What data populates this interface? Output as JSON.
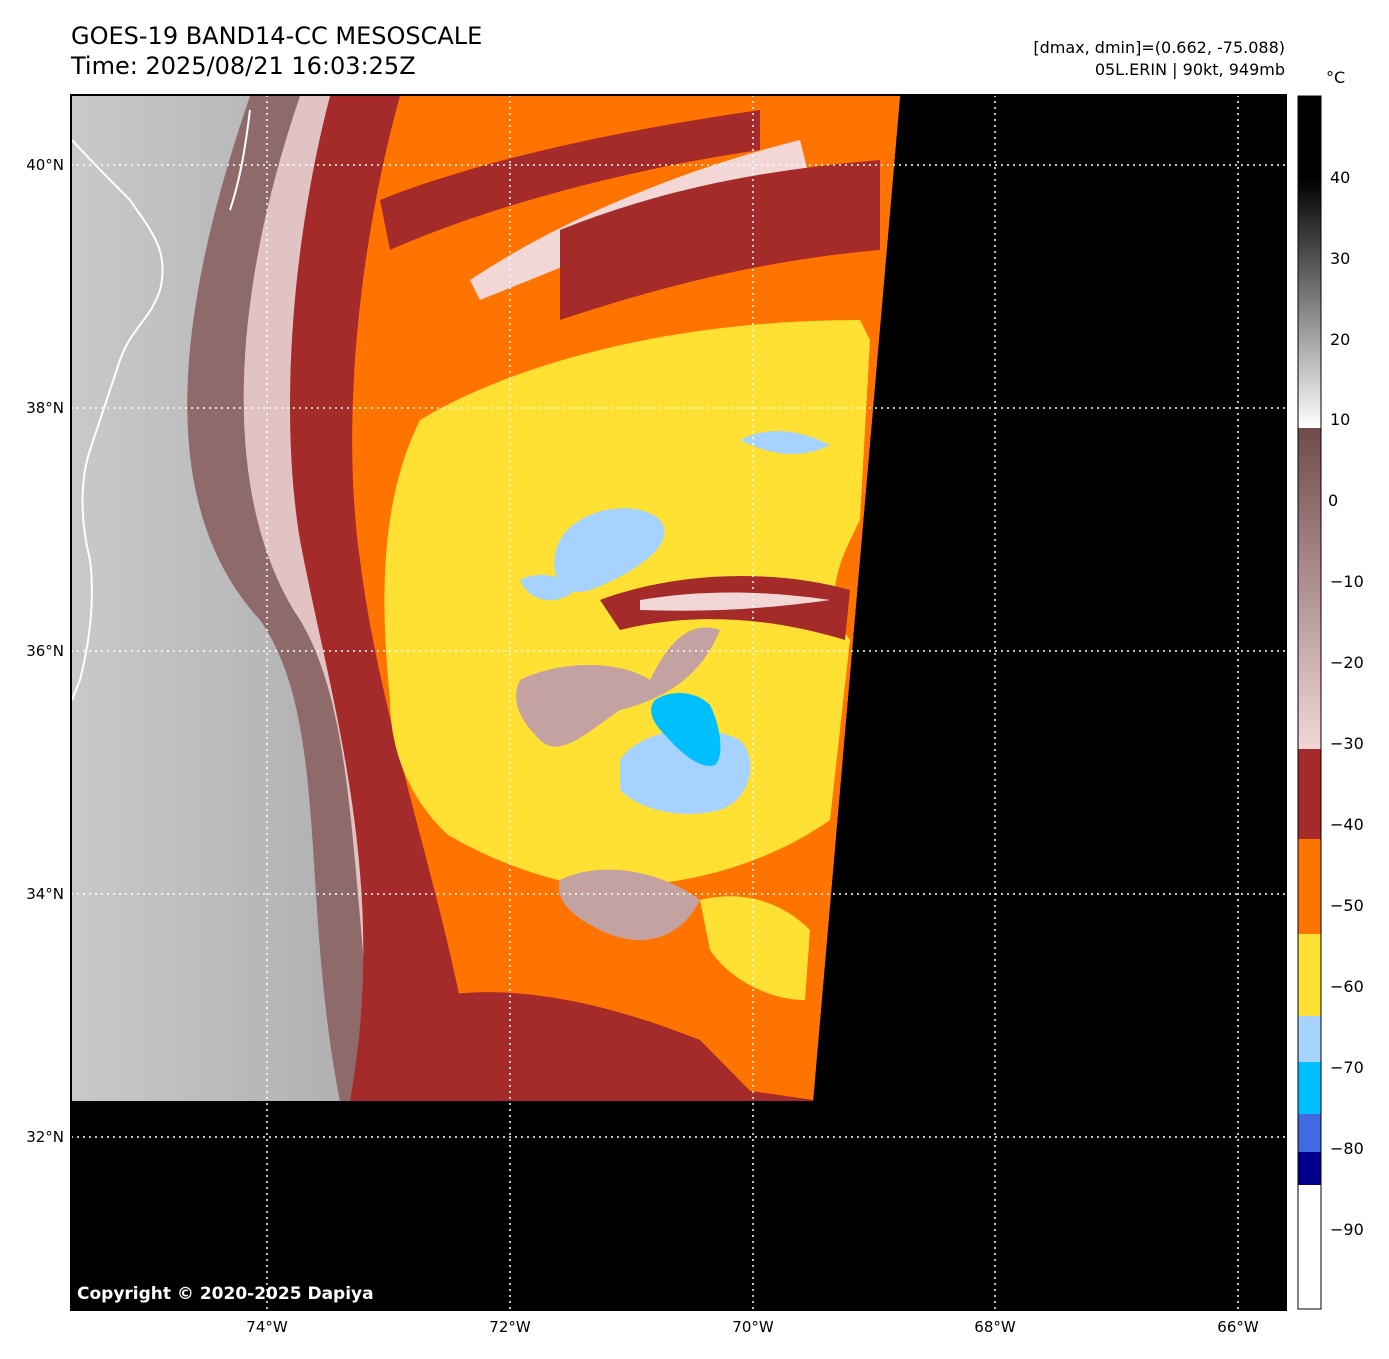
{
  "header": {
    "title_line1": "GOES-19 BAND14-CC MESOSCALE",
    "title_line2": "Time: 2025/08/21 16:03:25Z",
    "info_line1": "[dmax, dmin]=(0.662, -75.088)",
    "info_line2": "05L.ERIN | 90kt, 949mb"
  },
  "map": {
    "lat_labels": [
      "40°N",
      "38°N",
      "36°N",
      "34°N",
      "32°N"
    ],
    "lon_labels": [
      "74°W",
      "72°W",
      "70°W",
      "68°W",
      "66°W"
    ],
    "copyright": "Copyright © 2020-2025 Dapiya",
    "storm": "05L.ERIN"
  },
  "colorbar": {
    "unit": "°C",
    "labels": [
      "40",
      "30",
      "20",
      "10",
      "0",
      "−10",
      "−20",
      "−30",
      "−40",
      "−50",
      "−60",
      "−70",
      "−80",
      "−90"
    ],
    "colors": {
      "black": "#000000",
      "white": "#ffffff",
      "brown": "#6e4c4c",
      "pink": "#f3d6d6",
      "dark_red": "#a52a2a",
      "orange": "#ff7300",
      "yellow": "#ffe033",
      "light_blue": "#a5d2ff",
      "cyan": "#00bfff",
      "royal_blue": "#4169e1",
      "navy": "#00008b"
    }
  }
}
